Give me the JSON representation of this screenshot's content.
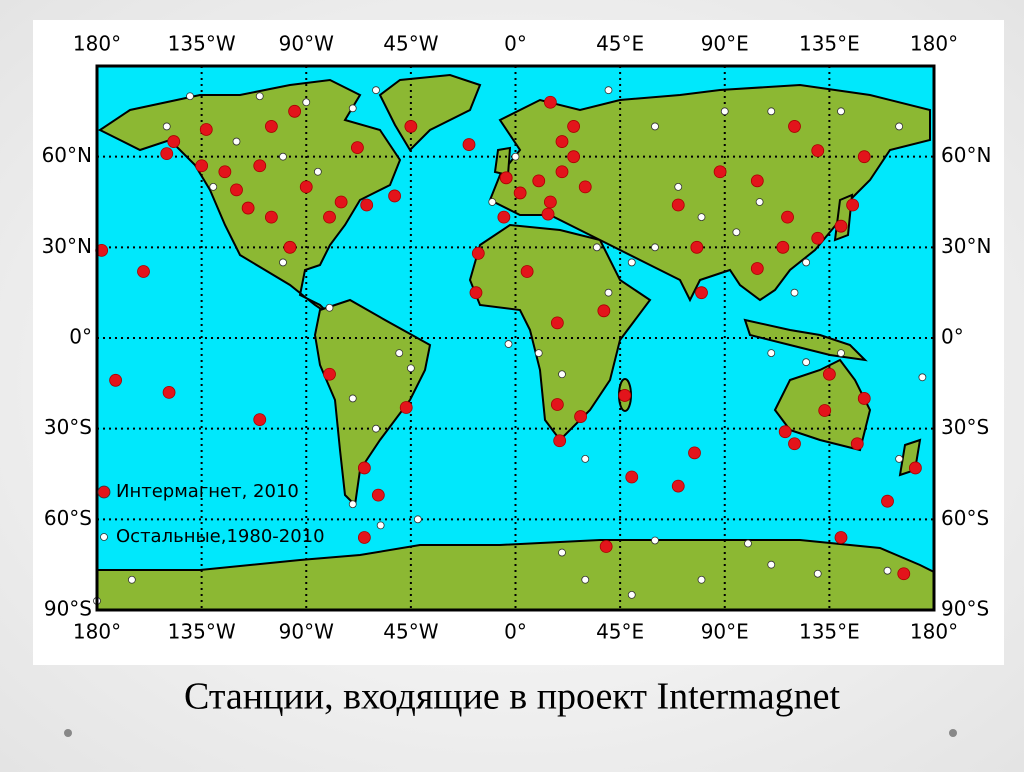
{
  "map": {
    "lon_ticks": [
      {
        "value": -180,
        "label": "180°"
      },
      {
        "value": -135,
        "label": "135°W"
      },
      {
        "value": -90,
        "label": "90°W"
      },
      {
        "value": -45,
        "label": "45°W"
      },
      {
        "value": 0,
        "label": "0°"
      },
      {
        "value": 45,
        "label": "45°E"
      },
      {
        "value": 90,
        "label": "90°E"
      },
      {
        "value": 135,
        "label": "135°E"
      },
      {
        "value": 180,
        "label": "180°"
      }
    ],
    "lat_ticks": [
      {
        "value": 60,
        "label": "60°N"
      },
      {
        "value": 30,
        "label": "30°N"
      },
      {
        "value": 0,
        "label": "0°"
      },
      {
        "value": -30,
        "label": "30°S"
      },
      {
        "value": -60,
        "label": "60°S"
      },
      {
        "value": -90,
        "label": "90°S"
      }
    ],
    "layers": [
      {
        "label": "Интермагнет, 2010",
        "color": "#e3141b",
        "points": [
          [
            -150,
            61
          ],
          [
            -147,
            65
          ],
          [
            -135,
            57
          ],
          [
            -120,
            49
          ],
          [
            -105,
            40
          ],
          [
            -97,
            30
          ],
          [
            -80,
            40
          ],
          [
            -75,
            45
          ],
          [
            -64,
            44
          ],
          [
            -52,
            47
          ],
          [
            -68,
            63
          ],
          [
            -95,
            75
          ],
          [
            -105,
            70
          ],
          [
            -133,
            69
          ],
          [
            -125,
            55
          ],
          [
            -110,
            57
          ],
          [
            -90,
            50
          ],
          [
            -115,
            43
          ],
          [
            -160,
            22
          ],
          [
            -178,
            29
          ],
          [
            -172,
            -14
          ],
          [
            -149,
            -18
          ],
          [
            -110,
            -27
          ],
          [
            -80,
            -12
          ],
          [
            -47,
            -23
          ],
          [
            -65,
            -43
          ],
          [
            -59,
            -52
          ],
          [
            -65,
            -66
          ],
          [
            -45,
            70
          ],
          [
            -20,
            64
          ],
          [
            -4,
            53
          ],
          [
            2,
            48
          ],
          [
            10,
            52
          ],
          [
            15,
            45
          ],
          [
            20,
            55
          ],
          [
            25,
            60
          ],
          [
            30,
            50
          ],
          [
            14,
            41
          ],
          [
            -5,
            40
          ],
          [
            -16,
            28
          ],
          [
            -17,
            15
          ],
          [
            5,
            22
          ],
          [
            18,
            5
          ],
          [
            38,
            9
          ],
          [
            47,
            -19
          ],
          [
            18,
            -22
          ],
          [
            28,
            -26
          ],
          [
            19,
            -34
          ],
          [
            50,
            -46
          ],
          [
            70,
            -49
          ],
          [
            77,
            -38
          ],
          [
            80,
            15
          ],
          [
            78,
            30
          ],
          [
            70,
            44
          ],
          [
            88,
            55
          ],
          [
            104,
            52
          ],
          [
            117,
            40
          ],
          [
            115,
            30
          ],
          [
            104,
            23
          ],
          [
            130,
            33
          ],
          [
            140,
            37
          ],
          [
            145,
            44
          ],
          [
            150,
            60
          ],
          [
            130,
            62
          ],
          [
            120,
            70
          ],
          [
            135,
            -12
          ],
          [
            116,
            -31
          ],
          [
            133,
            -24
          ],
          [
            150,
            -20
          ],
          [
            147,
            -35
          ],
          [
            120,
            -35
          ],
          [
            160,
            -54
          ],
          [
            172,
            -43
          ],
          [
            140,
            -66
          ],
          [
            167,
            -78
          ],
          [
            39,
            -69
          ],
          [
            15,
            78
          ],
          [
            25,
            70
          ],
          [
            20,
            65
          ]
        ]
      },
      {
        "label": "Остальные,1980-2010",
        "color": "#ffffff",
        "points": [
          [
            -140,
            80
          ],
          [
            -110,
            80
          ],
          [
            -90,
            78
          ],
          [
            -70,
            76
          ],
          [
            -60,
            82
          ],
          [
            -150,
            70
          ],
          [
            -120,
            65
          ],
          [
            -100,
            60
          ],
          [
            -85,
            55
          ],
          [
            -130,
            50
          ],
          [
            -100,
            25
          ],
          [
            -80,
            10
          ],
          [
            -50,
            -5
          ],
          [
            -70,
            -20
          ],
          [
            -45,
            -10
          ],
          [
            -60,
            -30
          ],
          [
            -70,
            -55
          ],
          [
            -58,
            -62
          ],
          [
            -42,
            -60
          ],
          [
            -3,
            -2
          ],
          [
            10,
            -5
          ],
          [
            20,
            -12
          ],
          [
            30,
            -40
          ],
          [
            40,
            82
          ],
          [
            60,
            70
          ],
          [
            90,
            75
          ],
          [
            110,
            75
          ],
          [
            140,
            75
          ],
          [
            165,
            70
          ],
          [
            70,
            50
          ],
          [
            80,
            40
          ],
          [
            95,
            35
          ],
          [
            105,
            45
          ],
          [
            125,
            25
          ],
          [
            120,
            15
          ],
          [
            110,
            -5
          ],
          [
            125,
            -8
          ],
          [
            140,
            -5
          ],
          [
            175,
            -13
          ],
          [
            165,
            -40
          ],
          [
            -165,
            -80
          ],
          [
            30,
            -80
          ],
          [
            50,
            -85
          ],
          [
            80,
            -80
          ],
          [
            110,
            -75
          ],
          [
            130,
            -78
          ],
          [
            160,
            -77
          ],
          [
            100,
            -68
          ],
          [
            60,
            -67
          ],
          [
            20,
            -71
          ],
          [
            -180,
            -87
          ],
          [
            60,
            30
          ],
          [
            50,
            25
          ],
          [
            35,
            30
          ],
          [
            0,
            60
          ],
          [
            -10,
            45
          ],
          [
            40,
            15
          ]
        ]
      }
    ]
  },
  "caption": "Станции, входящие в проект Intermagnet"
}
